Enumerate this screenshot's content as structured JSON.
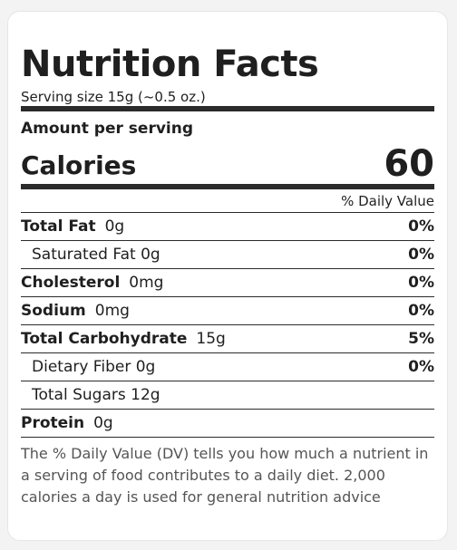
{
  "title": "Nutrition Facts",
  "serving_size": "Serving size 15g (~0.5 oz.)",
  "amount_per_serving": "Amount per serving",
  "calories": {
    "label": "Calories",
    "value": "60"
  },
  "dv_header": "% Daily Value",
  "nutrients": {
    "total_fat": {
      "name": "Total Fat",
      "amount": "0g",
      "dv": "0%"
    },
    "saturated_fat": {
      "name": "Saturated Fat 0g",
      "dv": "0%"
    },
    "cholesterol": {
      "name": "Cholesterol",
      "amount": "0mg",
      "dv": "0%"
    },
    "sodium": {
      "name": "Sodium",
      "amount": "0mg",
      "dv": "0%"
    },
    "total_carbohydrate": {
      "name": "Total Carbohydrate",
      "amount": "15g",
      "dv": "5%"
    },
    "dietary_fiber": {
      "name": "Dietary Fiber 0g",
      "dv": "0%"
    },
    "total_sugars": {
      "name": "Total Sugars 12g"
    },
    "protein": {
      "name": "Protein",
      "amount": "0g"
    }
  },
  "footnote": "The % Daily Value (DV) tells you how much a nutrient in a serving of food contributes to a daily diet. 2,000 calories a day is used for general nutrition advice"
}
